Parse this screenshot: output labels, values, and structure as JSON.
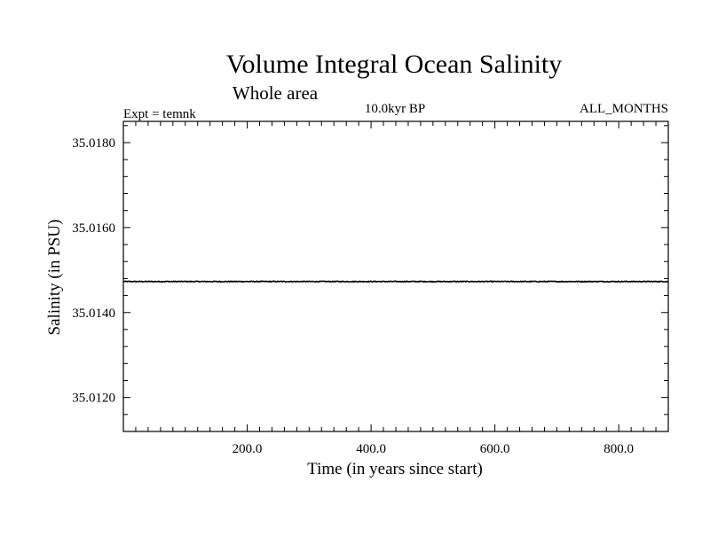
{
  "chart_data": {
    "type": "line",
    "title": "Volume Integral Ocean Salinity",
    "subtitle": "Whole area",
    "experiment_label": "Expt = temnk",
    "period_label": "10.0kyr BP",
    "months_label": "ALL_MONTHS",
    "xlabel": "Time (in years since start)",
    "ylabel": "Salinity (in PSU)",
    "xlim": [
      0,
      880
    ],
    "ylim": [
      35.0112,
      35.0185
    ],
    "x_ticks": [
      200,
      400,
      600,
      800
    ],
    "x_tick_labels": [
      "200.0",
      "400.0",
      "600.0",
      "800.0"
    ],
    "x_minor_step": 20,
    "y_ticks": [
      35.012,
      35.014,
      35.016,
      35.018
    ],
    "y_tick_labels": [
      "35.0120",
      "35.0140",
      "35.0160",
      "35.0180"
    ],
    "y_minor_step": 0.0004,
    "grid": false,
    "series": [
      {
        "color": "#000000",
        "x_start": 0,
        "x_end": 880,
        "x_step": 1,
        "mean_value": 35.01473,
        "noise_amplitude": 1e-05
      }
    ]
  }
}
